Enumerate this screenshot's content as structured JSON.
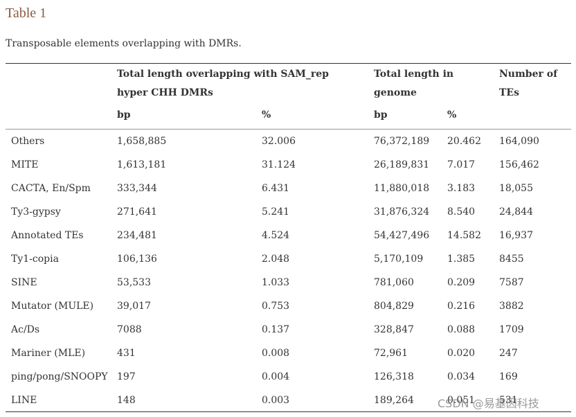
{
  "table": {
    "title": "Table 1",
    "caption": "Transposable elements overlapping with DMRs.",
    "headers": {
      "group1": "Total length overlapping with SAM_rep hyper CHH DMRs",
      "group2": "Total length in genome",
      "group3": "Number of TEs"
    },
    "units": [
      "bp",
      "%",
      "bp",
      "%"
    ],
    "rows": [
      [
        "Others",
        "1,658,885",
        "32.006",
        "76,372,189",
        "20.462",
        "164,090"
      ],
      [
        "MITE",
        "1,613,181",
        "31.124",
        "26,189,831",
        "7.017",
        "156,462"
      ],
      [
        "CACTA, En/Spm",
        "333,344",
        "6.431",
        "11,880,018",
        "3.183",
        "18,055"
      ],
      [
        "Ty3-gypsy",
        "271,641",
        "5.241",
        "31,876,324",
        "8.540",
        "24,844"
      ],
      [
        "Annotated TEs",
        "234,481",
        "4.524",
        "54,427,496",
        "14.582",
        "16,937"
      ],
      [
        "Ty1-copia",
        "106,136",
        "2.048",
        "5,170,109",
        "1.385",
        "8455"
      ],
      [
        "SINE",
        "53,533",
        "1.033",
        "781,060",
        "0.209",
        "7587"
      ],
      [
        "Mutator (MULE)",
        "39,017",
        "0.753",
        "804,829",
        "0.216",
        "3882"
      ],
      [
        "Ac/Ds",
        "7088",
        "0.137",
        "328,847",
        "0.088",
        "1709"
      ],
      [
        "Mariner (MLE)",
        "431",
        "0.008",
        "72,961",
        "0.020",
        "247"
      ],
      [
        "ping/pong/SNOOPY",
        "197",
        "0.004",
        "126,318",
        "0.034",
        "169"
      ],
      [
        "LINE",
        "148",
        "0.003",
        "189,264",
        "0.051",
        "531"
      ]
    ]
  },
  "watermark": "CSDN @易基因科技"
}
